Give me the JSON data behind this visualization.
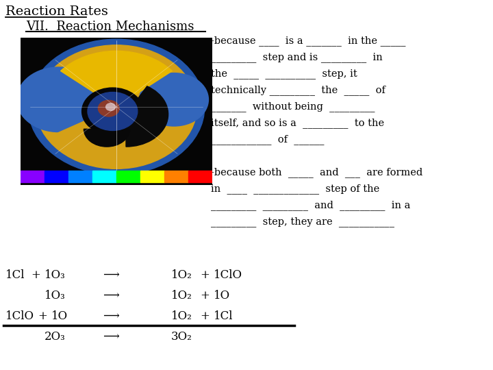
{
  "title": "Reaction Rates",
  "subtitle": "VII.  Reaction Mechanisms",
  "bg_color": "#ffffff",
  "text_color": "#000000",
  "right_text_lines": [
    "-because ____  is a _______  in the _____",
    "_________  step and is _________  in",
    "the  _____  __________  step, it",
    "technically _________  the  _____  of",
    "_______  without being  _________",
    "itself, and so is a  _________  to the",
    "____________  of  ______",
    "",
    "-because both  _____  and  ___  are formed",
    "in  ____  _____________  step of the",
    "_________  _________  and  _________  in a",
    "_________  step, they are  ___________"
  ],
  "title_fontsize": 14,
  "subtitle_fontsize": 13,
  "body_fontsize": 10.5,
  "eq_fontsize": 12
}
